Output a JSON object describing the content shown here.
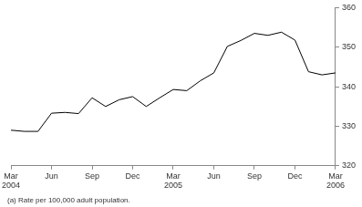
{
  "chart_data": {
    "type": "line",
    "categories": [
      "Mar 2004",
      null,
      null,
      "Jun",
      null,
      null,
      "Sep",
      null,
      null,
      "Dec",
      null,
      null,
      "Mar 2005",
      null,
      null,
      "Jun",
      null,
      null,
      "Sep",
      null,
      null,
      "Dec",
      null,
      null,
      "Mar 2006"
    ],
    "values": [
      329,
      328.7,
      328.7,
      333.3,
      333.5,
      333.2,
      337.2,
      335,
      336.7,
      337.5,
      335,
      337.2,
      339.3,
      339,
      341.5,
      343.5,
      350.2,
      351.7,
      353.5,
      353,
      353.8,
      351.8,
      343.8,
      343,
      343.5
    ],
    "color": "#000000",
    "ylim": [
      320,
      360
    ],
    "yticks": [
      320,
      330,
      340,
      350,
      360
    ],
    "grid": false,
    "annotations": [
      "(a) Rate per 100,000 adult population."
    ]
  }
}
